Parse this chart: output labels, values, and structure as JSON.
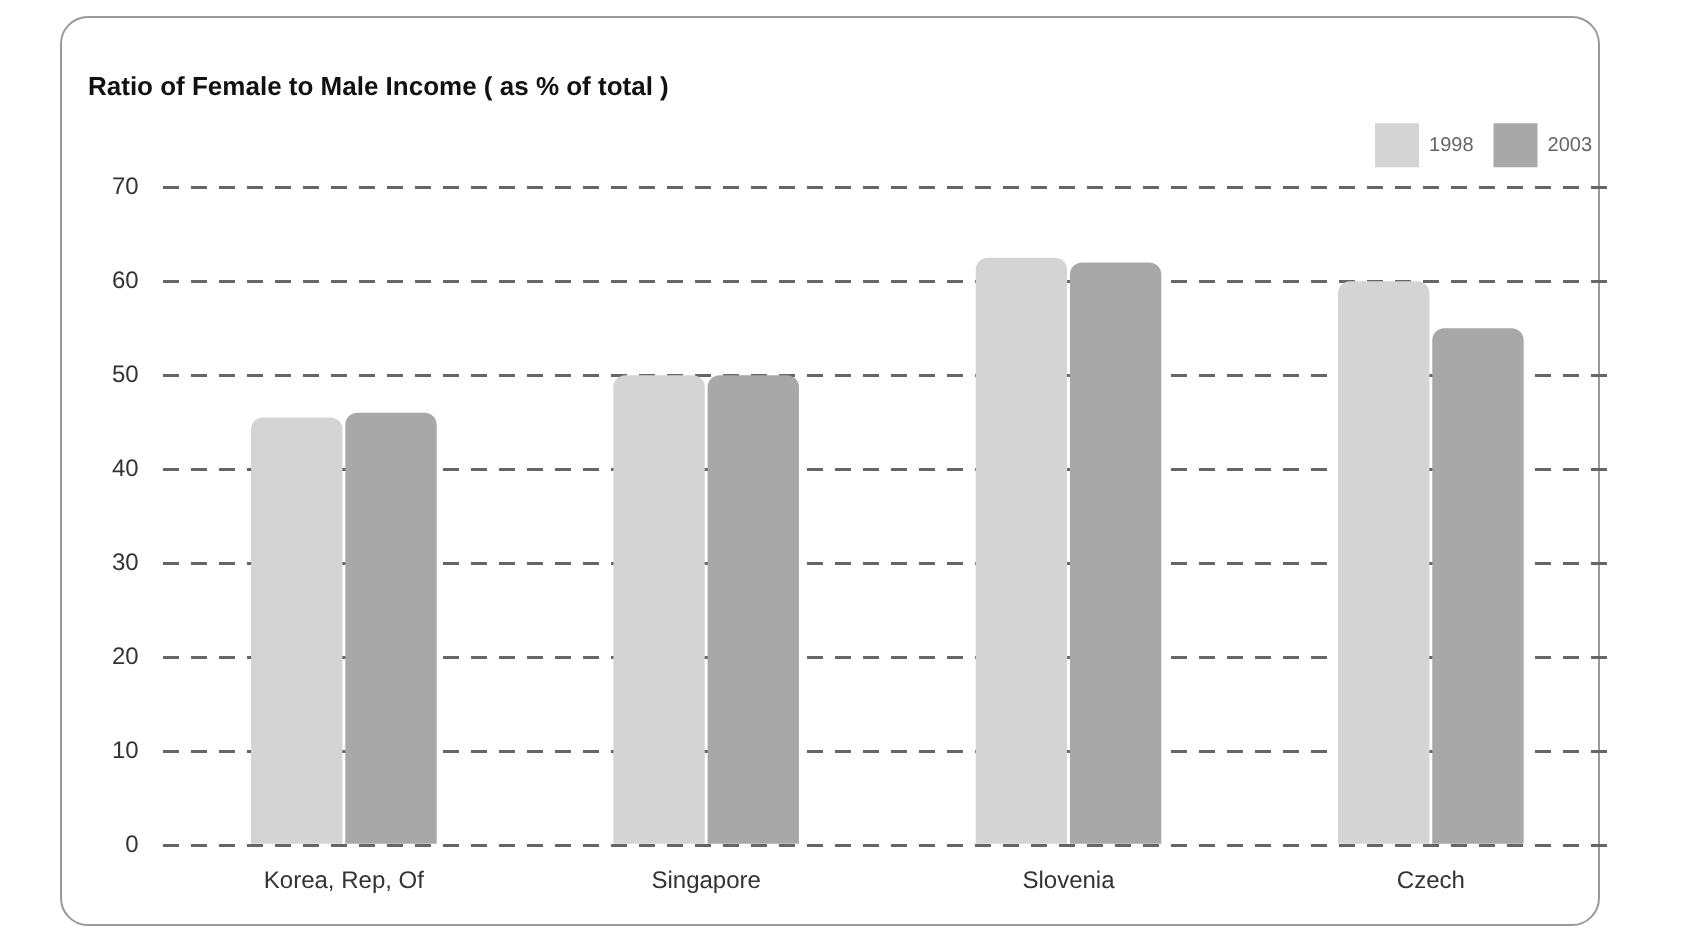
{
  "chart_data": {
    "type": "bar",
    "title": "Ratio of Female to Male Income ( as % of total )",
    "categories": [
      "Korea, Rep, Of",
      "Singapore",
      "Slovenia",
      "Czech"
    ],
    "series": [
      {
        "name": "1998",
        "color": "#d4d4d4",
        "values": [
          45.5,
          50,
          62.5,
          60
        ]
      },
      {
        "name": "2003",
        "color": "#a8a8a8",
        "values": [
          46,
          50,
          62,
          55
        ]
      }
    ],
    "ylim": [
      0,
      70
    ],
    "yticks": [
      0,
      10,
      20,
      30,
      40,
      50,
      60,
      70
    ],
    "grid": "y",
    "legend": "top right"
  }
}
